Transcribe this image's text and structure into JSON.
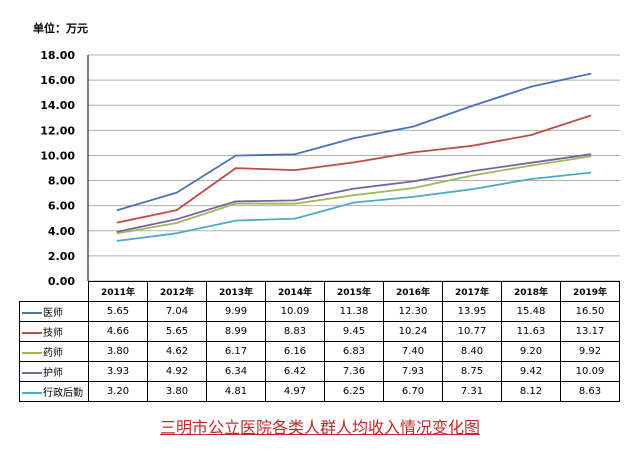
{
  "unit_label": "单位：万元",
  "title": "三明市公立医院各类人群人均收入情况变化图",
  "chart_data": {
    "type": "line",
    "title": "三明市公立医院各类人群人均收入情况变化图",
    "ylabel": "单位：万元",
    "ylim": [
      0,
      18
    ],
    "yticks": [
      "0.00",
      "2.00",
      "4.00",
      "6.00",
      "8.00",
      "10.00",
      "12.00",
      "14.00",
      "16.00",
      "18.00"
    ],
    "grid": true,
    "categories": [
      "2011年",
      "2012年",
      "2013年",
      "2014年",
      "2015年",
      "2016年",
      "2017年",
      "2018年",
      "2019年"
    ],
    "series": [
      {
        "name": "医师",
        "color": "#4a72b8",
        "values": [
          5.65,
          7.04,
          9.99,
          10.09,
          11.38,
          12.3,
          13.95,
          15.48,
          16.5
        ],
        "labels": [
          "5.65",
          "7.04",
          "9.99",
          "10.09",
          "11.38",
          "12.30",
          "13.95",
          "15.48",
          "16.50"
        ]
      },
      {
        "name": "技师",
        "color": "#bf4b48",
        "values": [
          4.66,
          5.65,
          8.99,
          8.83,
          9.45,
          10.24,
          10.77,
          11.63,
          13.17
        ],
        "labels": [
          "4.66",
          "5.65",
          "8.99",
          "8.83",
          "9.45",
          "10.24",
          "10.77",
          "11.63",
          "13.17"
        ]
      },
      {
        "name": "药师",
        "color": "#9bbb59",
        "values": [
          3.8,
          4.62,
          6.17,
          6.16,
          6.83,
          7.4,
          8.4,
          9.2,
          9.92
        ],
        "labels": [
          "3.80",
          "4.62",
          "6.17",
          "6.16",
          "6.83",
          "7.40",
          "8.40",
          "9.20",
          "9.92"
        ]
      },
      {
        "name": "护师",
        "color": "#7d60a0",
        "values": [
          3.93,
          4.92,
          6.34,
          6.42,
          7.36,
          7.93,
          8.75,
          9.42,
          10.09
        ],
        "labels": [
          "3.93",
          "4.92",
          "6.34",
          "6.42",
          "7.36",
          "7.93",
          "8.75",
          "9.42",
          "10.09"
        ]
      },
      {
        "name": "行政后勤",
        "color": "#4bacc6",
        "values": [
          3.2,
          3.8,
          4.81,
          4.97,
          6.25,
          6.7,
          7.31,
          8.12,
          8.63
        ],
        "labels": [
          "3.20",
          "3.80",
          "4.81",
          "4.97",
          "6.25",
          "6.70",
          "7.31",
          "8.12",
          "8.63"
        ]
      }
    ]
  }
}
